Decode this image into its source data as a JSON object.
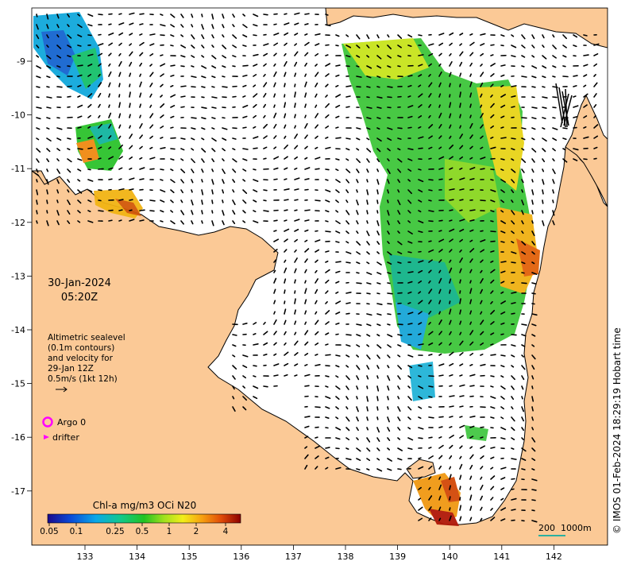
{
  "map": {
    "date": "30-Jan-2024",
    "time": "05:20Z",
    "sealevel_note": {
      "line1": "Altimetric sealevel",
      "line2": "(0.1m contours)",
      "line3": "and velocity for",
      "line4": "29-Jan 12Z",
      "line5": "0.5m/s (1kt 12h)"
    },
    "legend": {
      "argo_label": "Argo 0",
      "drifter_label": "drifter",
      "argo_color": "#ff00ff",
      "drifter_color": "#ff00ff"
    },
    "colorbar": {
      "title": "Chl-a mg/m3 OCi N20",
      "ticks": [
        "0.05",
        "0.1",
        "0.25",
        "0.5",
        "1",
        "2",
        "4"
      ]
    },
    "scale_bar": {
      "label1": "200",
      "label2": "1000m"
    },
    "credit": "© IMOS 01-Feb-2024 18:29:19 Hobart time",
    "lon_ticks": [
      "133",
      "134",
      "135",
      "136",
      "137",
      "138",
      "139",
      "140",
      "141",
      "142"
    ],
    "lat_ticks": [
      "-9",
      "-10",
      "-11",
      "-12",
      "-13",
      "-14",
      "-15",
      "-16",
      "-17"
    ],
    "colors": {
      "land": "#fbc996",
      "sea": "#ffffff",
      "coast": "#000000"
    }
  }
}
